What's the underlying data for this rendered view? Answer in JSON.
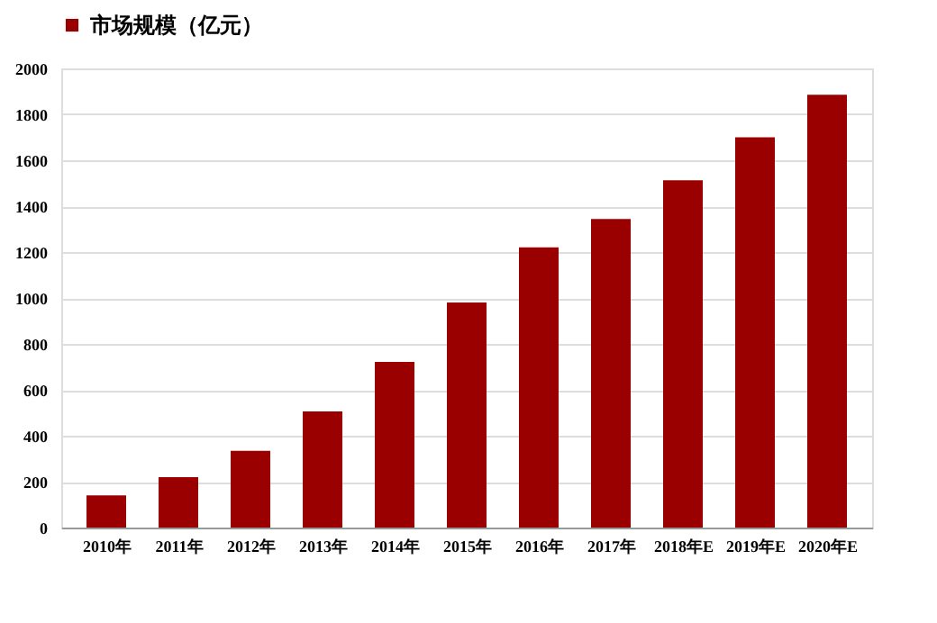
{
  "chart_data": {
    "type": "bar",
    "categories": [
      "2010年",
      "2011年",
      "2012年",
      "2013年",
      "2014年",
      "2015年",
      "2016年",
      "2017年",
      "2018年E",
      "2019年E",
      "2020年E"
    ],
    "series": [
      {
        "name": "市场规模（亿元）",
        "color": "#9b0000",
        "values": [
          140,
          220,
          334,
          506,
          722,
          980,
          1221,
          1344,
          1513,
          1700,
          1885
        ]
      }
    ],
    "ylim": [
      0,
      2000
    ],
    "yticks": [
      0,
      200,
      400,
      600,
      800,
      1000,
      1200,
      1400,
      1600,
      1800,
      2000
    ],
    "grid": "y",
    "legend": "top"
  }
}
